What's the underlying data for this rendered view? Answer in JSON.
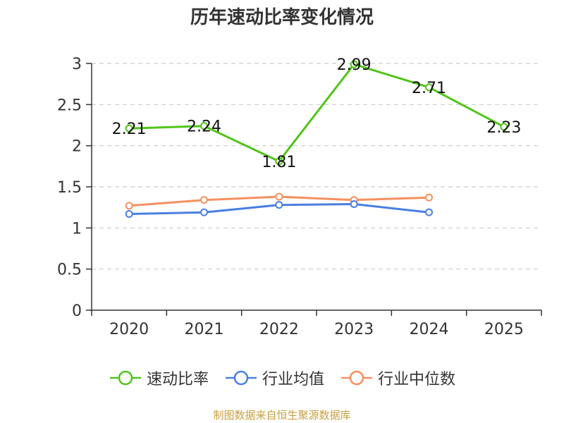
{
  "chart_data": {
    "type": "line",
    "title": "历年速动比率变化情况",
    "categories": [
      "2020",
      "2021",
      "2022",
      "2023",
      "2024",
      "2025"
    ],
    "ylim": [
      0,
      3
    ],
    "yticks": [
      "0",
      "0.5",
      "1",
      "1.5",
      "2",
      "2.5",
      "3"
    ],
    "grid": true,
    "legend_position": "bottom",
    "series": [
      {
        "name": "速动比率",
        "color": "#52c41a",
        "values": [
          2.21,
          2.24,
          1.81,
          2.99,
          2.71,
          2.23
        ],
        "labels": [
          "2.21",
          "2.24",
          "1.81",
          "2.99",
          "2.71",
          "2.23"
        ]
      },
      {
        "name": "行业均值",
        "color": "#4a7fe0",
        "values": [
          1.17,
          1.19,
          1.28,
          1.29,
          1.19,
          null
        ]
      },
      {
        "name": "行业中位数",
        "color": "#f5905f",
        "values": [
          1.27,
          1.34,
          1.38,
          1.34,
          1.37,
          null
        ]
      }
    ]
  },
  "source_note": "制图数据来自恒生聚源数据库",
  "source_color": "#c8a040"
}
